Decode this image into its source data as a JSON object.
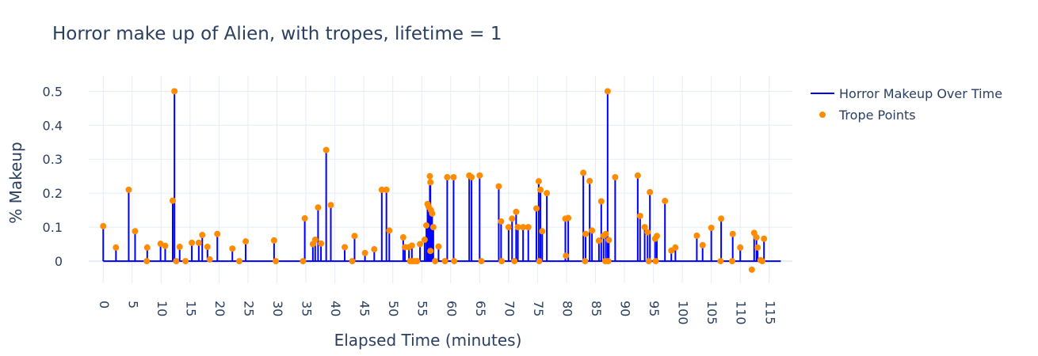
{
  "chart_data": {
    "type": "line",
    "title": "Horror make up of Alien, with tropes, lifetime = 1",
    "xlabel": "Elapsed Time (minutes)",
    "ylabel": "% Makeup",
    "xlim": [
      -2.5,
      119
    ],
    "ylim": [
      -0.065,
      0.545
    ],
    "xticks": [
      0,
      5,
      10,
      15,
      20,
      25,
      30,
      35,
      40,
      45,
      50,
      55,
      60,
      65,
      70,
      75,
      80,
      85,
      90,
      95,
      100,
      105,
      110,
      115
    ],
    "yticks": [
      0,
      0.1,
      0.2,
      0.3,
      0.4,
      0.5
    ],
    "ytick_labels": [
      "0",
      "0.1",
      "0.2",
      "0.3",
      "0.4",
      "0.5"
    ],
    "grid": true,
    "legend_position": "top-right",
    "colors": {
      "line": "#0000ff",
      "points": "#ff8c00",
      "text": "#2a3f5f",
      "grid": "#e5ecf6"
    },
    "series": [
      {
        "name": "Horror Makeup Over Time",
        "kind": "spikes",
        "x_end": 117,
        "x": [
          0,
          2.2,
          4.4,
          5.5,
          7.6,
          9.9,
          10.7,
          12.0,
          12.3,
          13.2,
          15.3,
          16.5,
          17.1,
          18.0,
          19.7,
          22.3,
          24.6,
          29.5,
          34.8,
          36.2,
          36.6,
          37.1,
          37.6,
          38.5,
          39.3,
          41.7,
          43.4,
          45.2,
          46.8,
          48.1,
          48.9,
          49.4,
          51.8,
          52.1,
          52.8,
          53.3,
          54.7,
          55.5,
          55.8,
          56.0,
          56.2,
          56.4,
          56.5,
          56.6,
          56.8,
          57.0,
          57.9,
          59.4,
          60.5,
          63.2,
          63.6,
          65.0,
          68.3,
          68.7,
          70.0,
          70.6,
          71.3,
          71.6,
          72.5,
          73.4,
          74.8,
          75.2,
          75.5,
          75.8,
          76.6,
          79.8,
          80.3,
          82.9,
          83.3,
          84.0,
          84.4,
          85.6,
          86.0,
          86.4,
          86.8,
          87.1,
          87.3,
          88.4,
          92.3,
          92.7,
          93.5,
          94.0,
          94.4,
          95.3,
          95.6,
          97.0,
          98.1,
          98.8,
          102.5,
          103.5,
          105.0,
          106.7,
          108.7,
          110.0,
          112.4,
          112.8,
          113.0,
          113.5,
          114.1
        ],
        "y": [
          0.103,
          0.04,
          0.21,
          0.088,
          0.04,
          0.051,
          0.045,
          0.178,
          0.5,
          0.042,
          0.054,
          0.054,
          0.077,
          0.042,
          0.08,
          0.037,
          0.058,
          0.061,
          0.126,
          0.05,
          0.063,
          0.158,
          0.052,
          0.327,
          0.165,
          0.041,
          0.074,
          0.024,
          0.035,
          0.21,
          0.21,
          0.09,
          0.07,
          0.041,
          0.041,
          0.046,
          0.05,
          0.063,
          0.105,
          0.168,
          0.16,
          0.25,
          0.232,
          0.15,
          0.14,
          0.1,
          0.043,
          0.247,
          0.247,
          0.252,
          0.247,
          0.252,
          0.22,
          0.117,
          0.1,
          0.125,
          0.145,
          0.1,
          0.1,
          0.1,
          0.155,
          0.235,
          0.21,
          0.088,
          0.2,
          0.125,
          0.127,
          0.26,
          0.08,
          0.236,
          0.09,
          0.06,
          0.176,
          0.075,
          0.08,
          0.5,
          0.062,
          0.247,
          0.252,
          0.133,
          0.1,
          0.085,
          0.203,
          0.066,
          0.074,
          0.177,
          0.031,
          0.04,
          0.075,
          0.047,
          0.098,
          0.125,
          0.08,
          0.04,
          0.083,
          0.07,
          0.04,
          0.003,
          0.066
        ]
      },
      {
        "name": "Trope Points",
        "kind": "markers",
        "x": [
          0,
          2.2,
          4.4,
          5.5,
          7.6,
          9.9,
          10.7,
          12.0,
          12.3,
          13.2,
          15.3,
          16.5,
          17.1,
          18.0,
          19.7,
          22.3,
          24.6,
          29.5,
          34.8,
          36.2,
          36.6,
          37.1,
          37.6,
          38.5,
          39.3,
          41.7,
          43.4,
          45.2,
          46.8,
          48.1,
          48.9,
          49.4,
          51.8,
          52.1,
          52.8,
          53.3,
          54.7,
          55.5,
          55.8,
          56.0,
          56.2,
          56.4,
          56.5,
          56.6,
          56.8,
          57.0,
          57.9,
          59.4,
          60.5,
          63.2,
          63.6,
          65.0,
          68.3,
          68.7,
          70.0,
          70.6,
          71.3,
          71.6,
          72.5,
          73.4,
          74.8,
          75.2,
          75.5,
          75.8,
          76.6,
          79.8,
          80.3,
          82.9,
          83.3,
          84.0,
          84.4,
          85.6,
          86.0,
          86.4,
          86.8,
          87.1,
          87.3,
          88.4,
          92.3,
          92.7,
          93.5,
          94.0,
          94.4,
          95.3,
          95.6,
          97.0,
          98.1,
          98.8,
          102.5,
          103.5,
          105.0,
          106.7,
          108.7,
          110.0,
          112.4,
          112.8,
          113.0,
          113.5,
          114.1,
          7.5,
          12.6,
          14.2,
          18.4,
          23.5,
          29.8,
          34.5,
          43.0,
          53.0,
          53.4,
          53.8,
          54.2,
          56.5,
          57.3,
          59.0,
          60.6,
          65.3,
          68.8,
          71.0,
          75.3,
          79.9,
          83.2,
          86.7,
          87.2,
          94.2,
          95.4,
          106.6,
          108.6,
          112.0,
          113.8
        ],
        "y": [
          0.103,
          0.04,
          0.21,
          0.088,
          0.04,
          0.051,
          0.045,
          0.178,
          0.5,
          0.042,
          0.054,
          0.054,
          0.077,
          0.042,
          0.08,
          0.037,
          0.058,
          0.061,
          0.126,
          0.05,
          0.063,
          0.158,
          0.052,
          0.327,
          0.165,
          0.041,
          0.074,
          0.024,
          0.035,
          0.21,
          0.21,
          0.09,
          0.07,
          0.041,
          0.041,
          0.046,
          0.05,
          0.063,
          0.105,
          0.168,
          0.16,
          0.25,
          0.232,
          0.15,
          0.14,
          0.1,
          0.043,
          0.247,
          0.247,
          0.252,
          0.247,
          0.252,
          0.22,
          0.117,
          0.1,
          0.125,
          0.145,
          0.1,
          0.1,
          0.1,
          0.155,
          0.235,
          0.21,
          0.088,
          0.2,
          0.125,
          0.127,
          0.26,
          0.08,
          0.236,
          0.09,
          0.06,
          0.176,
          0.075,
          0.08,
          0.5,
          0.062,
          0.247,
          0.252,
          0.133,
          0.1,
          0.085,
          0.203,
          0.066,
          0.074,
          0.177,
          0.031,
          0.04,
          0.075,
          0.047,
          0.098,
          0.125,
          0.08,
          0.04,
          0.083,
          0.07,
          0.04,
          0.003,
          0.066,
          0,
          0,
          0,
          0.005,
          0,
          0,
          0,
          0,
          0,
          0,
          0,
          0,
          0.03,
          0,
          0,
          0,
          0,
          0,
          0,
          0,
          0.016,
          0,
          0,
          0,
          0,
          0,
          0,
          0,
          -0.025,
          0
        ]
      }
    ]
  }
}
